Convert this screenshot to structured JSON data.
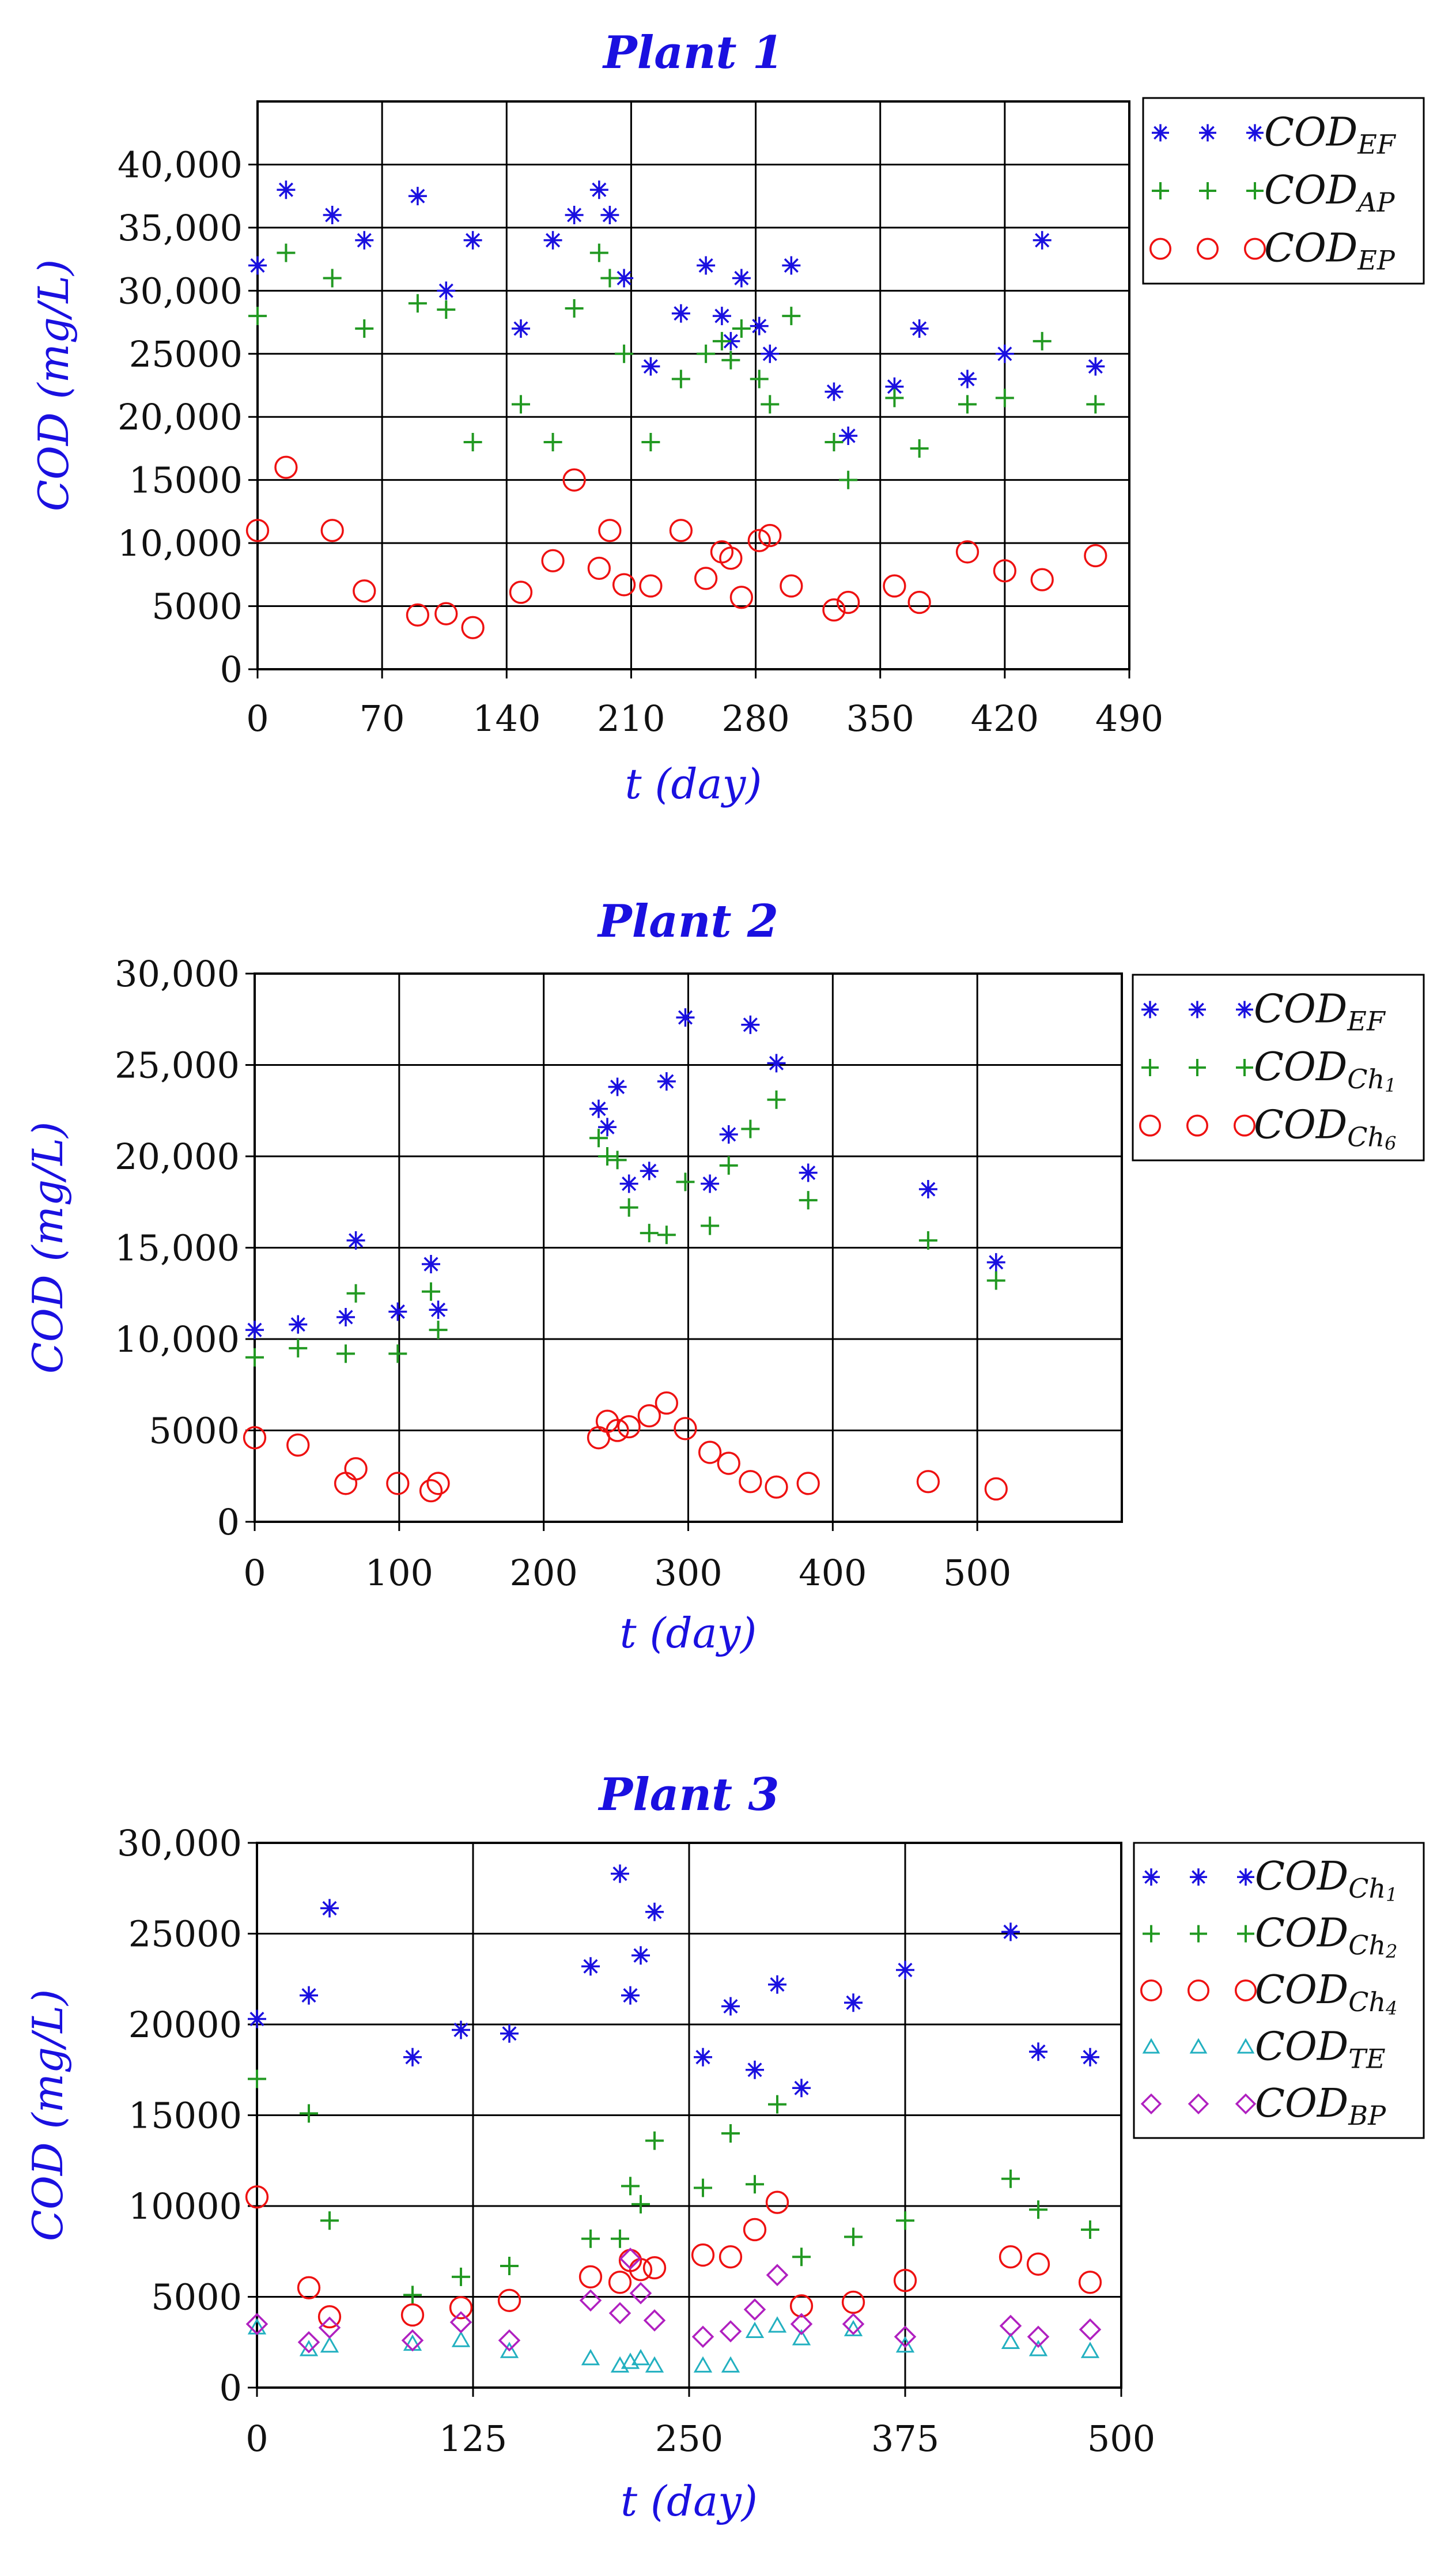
{
  "chart_data": [
    {
      "type": "scatter",
      "title": "Plant 1",
      "xlabel": "t (day)",
      "ylabel": "COD (mg/L)",
      "xlim": [
        0,
        490
      ],
      "ylim": [
        0,
        45000
      ],
      "xticks": [
        0,
        70,
        140,
        210,
        280,
        350,
        420,
        490
      ],
      "yticks": [
        0,
        5000,
        10000,
        15000,
        20000,
        25000,
        30000,
        35000,
        40000
      ],
      "ytick_labels": [
        "0",
        "5000",
        "10,000",
        "15000",
        "20,000",
        "25000",
        "30,000",
        "35,000",
        "40,000"
      ],
      "grid": true,
      "legend_position": "right",
      "series": [
        {
          "name": "COD",
          "sub": "EF",
          "marker": "star",
          "color": "#1a10e0",
          "x": [
            0,
            16,
            42,
            60,
            90,
            106,
            121,
            148,
            166,
            178,
            192,
            198,
            206,
            221,
            238,
            252,
            261,
            266,
            272,
            282,
            288,
            300,
            324,
            332,
            358,
            372,
            399,
            420,
            441,
            471
          ],
          "y": [
            32000,
            38000,
            36000,
            34000,
            37500,
            30000,
            34000,
            27000,
            34000,
            36000,
            38000,
            36000,
            31000,
            24000,
            28200,
            32000,
            28000,
            26000,
            31000,
            27200,
            25000,
            32000,
            22000,
            18500,
            22400,
            27000,
            23000,
            25000,
            34000,
            24000
          ]
        },
        {
          "name": "COD",
          "sub": "AP",
          "marker": "plus",
          "color": "#229922",
          "x": [
            0,
            16,
            42,
            60,
            90,
            106,
            121,
            148,
            166,
            178,
            192,
            198,
            206,
            221,
            238,
            252,
            261,
            266,
            272,
            282,
            288,
            300,
            324,
            332,
            358,
            372,
            399,
            420,
            441,
            471
          ],
          "y": [
            28000,
            33000,
            31000,
            27000,
            29000,
            28500,
            18000,
            21000,
            18000,
            28600,
            33000,
            31000,
            25000,
            18000,
            23000,
            25000,
            26000,
            24500,
            27000,
            23000,
            21000,
            28000,
            18000,
            15000,
            21500,
            17500,
            21000,
            21500,
            26000,
            21000
          ]
        },
        {
          "name": "COD",
          "sub": "EP",
          "marker": "circle",
          "color": "#ee1111",
          "x": [
            0,
            16,
            42,
            60,
            90,
            106,
            121,
            148,
            166,
            178,
            192,
            198,
            206,
            221,
            238,
            252,
            261,
            266,
            272,
            282,
            288,
            300,
            324,
            332,
            358,
            372,
            399,
            420,
            441,
            471
          ],
          "y": [
            11000,
            16000,
            11000,
            6200,
            4300,
            4400,
            3300,
            6100,
            8600,
            15000,
            8000,
            11000,
            6700,
            6600,
            11000,
            7200,
            9300,
            8800,
            5700,
            10200,
            10600,
            6600,
            4700,
            5300,
            6600,
            5300,
            9300,
            7800,
            7100,
            9000
          ]
        }
      ]
    },
    {
      "type": "scatter",
      "title": "Plant 2",
      "xlabel": "t (day)",
      "ylabel": "COD (mg/L)",
      "xlim": [
        0,
        600
      ],
      "ylim": [
        0,
        30000
      ],
      "xticks": [
        0,
        100,
        200,
        300,
        400,
        500
      ],
      "yticks": [
        0,
        5000,
        10000,
        15000,
        20000,
        25000,
        30000
      ],
      "ytick_labels": [
        "0",
        "5000",
        "10,000",
        "15,000",
        "20,000",
        "25,000",
        "30,000"
      ],
      "grid": true,
      "legend_position": "right",
      "series": [
        {
          "name": "COD",
          "sub": "EF",
          "marker": "star",
          "color": "#1a10e0",
          "x": [
            0,
            30,
            63,
            70,
            99,
            122,
            127,
            238,
            244,
            251,
            259,
            273,
            285,
            298,
            315,
            328,
            343,
            361,
            383,
            466,
            513
          ],
          "y": [
            10500,
            10800,
            11200,
            15400,
            11500,
            14100,
            11600,
            22600,
            21600,
            23800,
            18500,
            19200,
            24100,
            27600,
            18500,
            21200,
            27200,
            25100,
            19100,
            18200,
            14200
          ]
        },
        {
          "name": "COD",
          "sub": "Ch1",
          "marker": "plus",
          "color": "#229922",
          "x": [
            0,
            30,
            63,
            70,
            99,
            122,
            127,
            238,
            244,
            251,
            259,
            273,
            285,
            298,
            315,
            328,
            343,
            361,
            383,
            466,
            513
          ],
          "y": [
            9000,
            9500,
            9200,
            12500,
            9200,
            12600,
            10500,
            21000,
            20000,
            19800,
            17200,
            15800,
            15700,
            18600,
            16200,
            19500,
            21500,
            23100,
            17600,
            15400,
            13200
          ]
        },
        {
          "name": "COD",
          "sub": "Ch6",
          "marker": "circle",
          "color": "#ee1111",
          "x": [
            0,
            30,
            63,
            70,
            99,
            122,
            127,
            238,
            244,
            251,
            259,
            273,
            285,
            298,
            315,
            328,
            343,
            361,
            383,
            466,
            513
          ],
          "y": [
            4600,
            4200,
            2100,
            2900,
            2100,
            1700,
            2100,
            4600,
            5500,
            5000,
            5200,
            5800,
            6500,
            5100,
            3800,
            3200,
            2200,
            1900,
            2100,
            2200,
            1800
          ]
        }
      ]
    },
    {
      "type": "scatter",
      "title": "Plant 3",
      "xlabel": "t (day)",
      "ylabel": "COD (mg/L)",
      "xlim": [
        0,
        500
      ],
      "ylim": [
        0,
        30000
      ],
      "xticks": [
        0,
        125,
        250,
        375,
        500
      ],
      "yticks": [
        0,
        5000,
        10000,
        15000,
        20000,
        25000,
        30000
      ],
      "ytick_labels": [
        "0",
        "5000",
        "10000",
        "15000",
        "20000",
        "25000",
        "30,000"
      ],
      "grid": true,
      "legend_position": "right",
      "series": [
        {
          "name": "COD",
          "sub": "Ch1",
          "marker": "star",
          "color": "#1a10e0",
          "x": [
            0,
            30,
            42,
            90,
            118,
            146,
            193,
            210,
            216,
            222,
            230,
            258,
            274,
            288,
            301,
            315,
            345,
            375,
            436,
            452,
            482
          ],
          "y": [
            20300,
            21600,
            26400,
            18200,
            19700,
            19500,
            23200,
            28300,
            21600,
            23800,
            26200,
            18200,
            21000,
            17500,
            22200,
            16500,
            21200,
            23000,
            25100,
            18500,
            18200
          ]
        },
        {
          "name": "COD",
          "sub": "Ch2",
          "marker": "plus",
          "color": "#229922",
          "x": [
            0,
            30,
            42,
            90,
            118,
            146,
            193,
            210,
            216,
            222,
            230,
            258,
            274,
            288,
            301,
            315,
            345,
            375,
            436,
            452,
            482
          ],
          "y": [
            17000,
            15100,
            9200,
            5100,
            6100,
            6700,
            8200,
            8200,
            11100,
            10100,
            13600,
            11000,
            14000,
            11200,
            15600,
            7200,
            8300,
            9200,
            11500,
            9800,
            8700
          ]
        },
        {
          "name": "COD",
          "sub": "Ch4",
          "marker": "circle",
          "color": "#ee1111",
          "x": [
            0,
            30,
            42,
            90,
            118,
            146,
            193,
            210,
            216,
            222,
            230,
            258,
            274,
            288,
            301,
            315,
            345,
            375,
            436,
            452,
            482
          ],
          "y": [
            10500,
            5500,
            3900,
            4000,
            4400,
            4800,
            6100,
            5800,
            7000,
            6500,
            6600,
            7300,
            7200,
            8700,
            10200,
            4500,
            4700,
            5900,
            7200,
            6800,
            5800
          ]
        },
        {
          "name": "COD",
          "sub": "TE",
          "marker": "triangle",
          "color": "#22b0c0",
          "x": [
            0,
            30,
            42,
            90,
            118,
            146,
            193,
            210,
            216,
            222,
            230,
            258,
            274,
            288,
            301,
            315,
            345,
            375,
            436,
            452,
            482
          ],
          "y": [
            3300,
            2100,
            2300,
            2400,
            2600,
            2000,
            1600,
            1200,
            1400,
            1600,
            1200,
            1200,
            1200,
            3100,
            3400,
            2700,
            3200,
            2300,
            2500,
            2100,
            2000
          ]
        },
        {
          "name": "COD",
          "sub": "BP",
          "marker": "diamond",
          "color": "#b020c0",
          "x": [
            0,
            30,
            42,
            90,
            118,
            146,
            193,
            210,
            216,
            222,
            230,
            258,
            274,
            288,
            301,
            315,
            345,
            375,
            436,
            452,
            482
          ],
          "y": [
            3500,
            2500,
            3300,
            2600,
            3600,
            2600,
            4800,
            4100,
            7100,
            5200,
            3700,
            2800,
            3100,
            4300,
            6200,
            3500,
            3500,
            2800,
            3400,
            2800,
            3200
          ]
        }
      ]
    }
  ]
}
